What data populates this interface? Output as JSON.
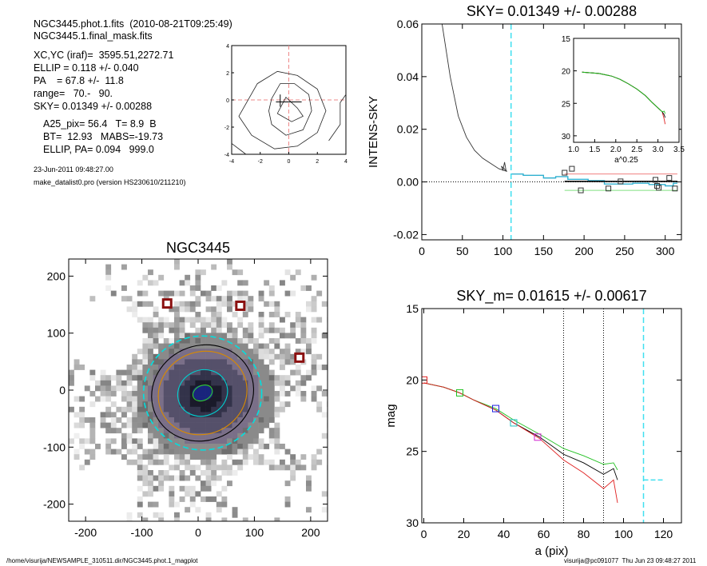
{
  "header": {
    "lines": [
      "NGC3445.phot.1.fits  (2010-08-21T09:25:49)",
      "NGC3445.1.final_mask.fits",
      "XC,YC (iraf)=  3595.51,2272.71",
      "ELLIP = 0.118 +/- 0.040",
      "PA    = 67.8 +/-  11.8",
      "range=   70.-   90.",
      "SKY= 0.01349 +/- 0.00288",
      "A25_pix= 56.4   T= 8.9  B",
      "BT=  12.93   MABS=-19.73",
      "ELLIP, PA= 0.094   999.0",
      "23-Jun-2011 09:48:27.00",
      "make_datalist0.pro (version HS230610/211210)"
    ]
  },
  "footer": {
    "left": "/home/visurija/NEWSAMPLE_310511.dir/NGC3445.phot.1_magplot",
    "right": "visurija@pc091077  Thu Jun 23 09:48:27 2011"
  },
  "chart_data": [
    {
      "id": "contour",
      "type": "contour",
      "x_ticks": [
        "-4",
        "-2",
        "0",
        "2",
        "4"
      ],
      "y_ticks": [
        "4",
        "2",
        "0",
        "-2",
        "-4"
      ],
      "xlim": [
        -4,
        4
      ],
      "ylim": [
        -4,
        4
      ]
    },
    {
      "id": "image",
      "type": "heatmap",
      "title": "NGC3445",
      "x_ticks": [
        "-200",
        "-100",
        "0",
        "100",
        "200"
      ],
      "y_ticks": [
        "200",
        "100",
        "0",
        "-100",
        "-200"
      ],
      "xlim": [
        -230,
        230
      ],
      "ylim": [
        -230,
        230
      ],
      "markers": [
        [
          -55,
          152
        ],
        [
          75,
          148
        ],
        [
          180,
          57
        ]
      ],
      "ellipses": [
        {
          "a": 105,
          "b": 100,
          "color": "#00e0e0",
          "dash": true
        },
        {
          "a": 92,
          "b": 83,
          "color": "#000000"
        },
        {
          "a": 80,
          "b": 72,
          "color": "#d98a00"
        },
        {
          "a": 45,
          "b": 40,
          "color": "#00d0d0"
        },
        {
          "a": 18,
          "b": 13,
          "color": "#30d030"
        }
      ]
    },
    {
      "id": "sky_profile",
      "type": "line",
      "title": "SKY= 0.01349 +/- 0.00288",
      "ylabel": "INTENS-SKY",
      "x_ticks": [
        "0",
        "50",
        "100",
        "150",
        "200",
        "250",
        "300"
      ],
      "y_ticks": [
        "0.06",
        "0.04",
        "0.02",
        "0.00",
        "-0.02"
      ],
      "xlim": [
        0,
        320
      ],
      "ylim": [
        -0.022,
        0.06
      ],
      "x": [
        25,
        35,
        45,
        55,
        65,
        75,
        85,
        95,
        105
      ],
      "values": [
        0.06,
        0.04,
        0.025,
        0.017,
        0.012,
        0.009,
        0.007,
        0.005,
        0.004
      ],
      "sky_line_x": 110,
      "squares": [
        [
          176,
          0.0035
        ],
        [
          185,
          0.005
        ],
        [
          196,
          -0.0032
        ],
        [
          230,
          -0.0025
        ],
        [
          245,
          0.0002
        ],
        [
          288,
          0.0008
        ],
        [
          290,
          -0.0015
        ],
        [
          292,
          -0.0022
        ],
        [
          305,
          0.0015
        ],
        [
          312,
          -0.0025
        ]
      ],
      "inset": {
        "xlabel": "a^0.25",
        "x_ticks": [
          "1.0",
          "1.5",
          "2.0",
          "2.5",
          "3.0",
          "3.5"
        ],
        "y_ticks": [
          "15",
          "20",
          "25",
          "30"
        ],
        "xlim": [
          1.0,
          3.5
        ],
        "ylim": [
          15,
          31
        ]
      }
    },
    {
      "id": "mag_profile",
      "type": "line",
      "title": "SKY_m=  0.01615 +/- 0.00617",
      "xlabel": "a (pix)",
      "ylabel": "mag",
      "x_ticks": [
        "0",
        "20",
        "40",
        "60",
        "80",
        "100",
        "120"
      ],
      "y_ticks": [
        "15",
        "20",
        "25",
        "30"
      ],
      "xlim": [
        -1,
        129
      ],
      "ylim": [
        15,
        30
      ],
      "x": [
        0,
        10,
        18,
        25,
        36,
        45,
        58,
        70,
        80,
        90,
        95,
        97
      ],
      "series": [
        {
          "color": "#000000",
          "values": [
            20.2,
            20.5,
            20.9,
            21.4,
            22.1,
            23.0,
            24.0,
            25.2,
            25.8,
            26.6,
            26.2,
            27.0
          ]
        },
        {
          "color": "#20c020",
          "values": [
            20.2,
            20.5,
            20.9,
            21.4,
            22.0,
            22.8,
            23.8,
            24.8,
            25.3,
            25.9,
            25.8,
            26.3
          ]
        },
        {
          "color": "#e02020",
          "values": [
            20.2,
            20.5,
            20.9,
            21.4,
            22.1,
            23.0,
            24.1,
            25.6,
            26.5,
            27.6,
            27.0,
            28.6
          ]
        }
      ],
      "vlines": [
        70,
        90
      ],
      "sky_line_x": 110,
      "sky_mag": 27.0,
      "markers": [
        {
          "x": 0,
          "y": 20.0,
          "color": "#e02020"
        },
        {
          "x": 18,
          "y": 20.9,
          "color": "#20c020"
        },
        {
          "x": 36,
          "y": 22.0,
          "color": "#2020e0"
        },
        {
          "x": 45,
          "y": 23.0,
          "color": "#20c0c0"
        },
        {
          "x": 57,
          "y": 24.0,
          "color": "#d020d0"
        }
      ]
    }
  ]
}
